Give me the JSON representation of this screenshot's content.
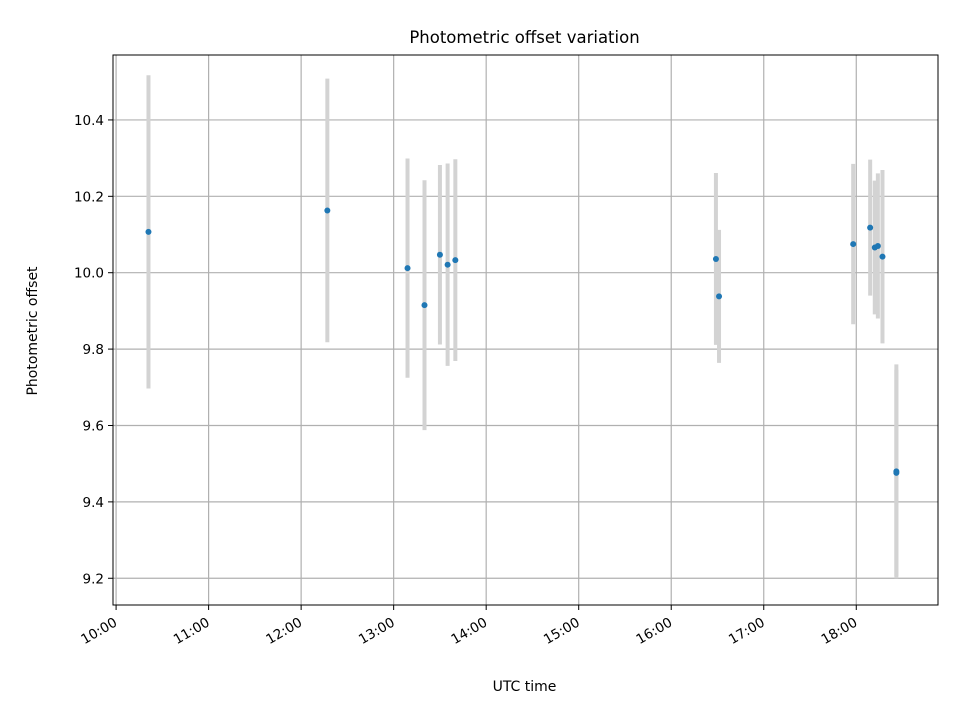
{
  "chart_data": {
    "type": "scatter",
    "title": "Photometric offset variation",
    "xlabel": "UTC time",
    "ylabel": "Photometric offset",
    "grid": true,
    "x_ticks": [
      "10:00",
      "11:00",
      "12:00",
      "13:00",
      "14:00",
      "15:00",
      "16:00",
      "17:00",
      "18:00"
    ],
    "y_ticks": [
      "9.2",
      "9.4",
      "9.6",
      "9.8",
      "10.0",
      "10.2",
      "10.4"
    ],
    "xlim": [
      "09:58",
      "18:53"
    ],
    "ylim": [
      9.13,
      10.57
    ],
    "colors": {
      "point": "#1f77b4",
      "errorbar": "#d3d3d3",
      "grid": "#b0b0b0"
    },
    "series": [
      {
        "points": [
          {
            "x": "10:21",
            "y": 10.107,
            "err": 0.41
          },
          {
            "x": "12:17",
            "y": 10.163,
            "err": 0.345
          },
          {
            "x": "13:09",
            "y": 10.012,
            "err": 0.287
          },
          {
            "x": "13:20",
            "y": 9.915,
            "err": 0.327
          },
          {
            "x": "13:30",
            "y": 10.047,
            "err": 0.235
          },
          {
            "x": "13:35",
            "y": 10.021,
            "err": 0.265
          },
          {
            "x": "13:40",
            "y": 10.033,
            "err": 0.264
          },
          {
            "x": "16:29",
            "y": 10.036,
            "err": 0.225
          },
          {
            "x": "16:31",
            "y": 9.938,
            "err": 0.174
          },
          {
            "x": "17:58",
            "y": 10.075,
            "err": 0.21
          },
          {
            "x": "18:09",
            "y": 10.118,
            "err": 0.178
          },
          {
            "x": "18:12",
            "y": 10.066,
            "err": 0.175
          },
          {
            "x": "18:14",
            "y": 10.07,
            "err": 0.19
          },
          {
            "x": "18:17",
            "y": 10.042,
            "err": 0.227
          },
          {
            "x": "18:26",
            "y": 9.48,
            "err": 0.28
          },
          {
            "x": "18:26",
            "y": 9.476,
            "err": 0.27
          }
        ]
      }
    ]
  }
}
